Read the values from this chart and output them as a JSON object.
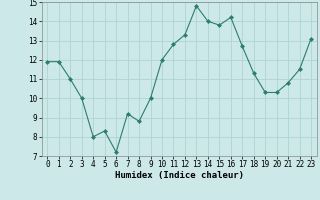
{
  "x": [
    0,
    1,
    2,
    3,
    4,
    5,
    6,
    7,
    8,
    9,
    10,
    11,
    12,
    13,
    14,
    15,
    16,
    17,
    18,
    19,
    20,
    21,
    22,
    23
  ],
  "y": [
    11.9,
    11.9,
    11.0,
    10.0,
    8.0,
    8.3,
    7.2,
    9.2,
    8.8,
    10.0,
    12.0,
    12.8,
    13.3,
    14.8,
    14.0,
    13.8,
    14.2,
    12.7,
    11.3,
    10.3,
    10.3,
    10.8,
    11.5,
    13.1
  ],
  "line_color": "#2d7d6e",
  "marker": "D",
  "marker_size": 2,
  "bg_color": "#cce8e8",
  "grid_color": "#aed4d4",
  "xlabel": "Humidex (Indice chaleur)",
  "ylim": [
    7,
    15
  ],
  "xlim": [
    -0.5,
    23.5
  ],
  "yticks": [
    7,
    8,
    9,
    10,
    11,
    12,
    13,
    14,
    15
  ],
  "xticks": [
    0,
    1,
    2,
    3,
    4,
    5,
    6,
    7,
    8,
    9,
    10,
    11,
    12,
    13,
    14,
    15,
    16,
    17,
    18,
    19,
    20,
    21,
    22,
    23
  ],
  "label_fontsize": 6.5,
  "tick_fontsize": 5.5
}
